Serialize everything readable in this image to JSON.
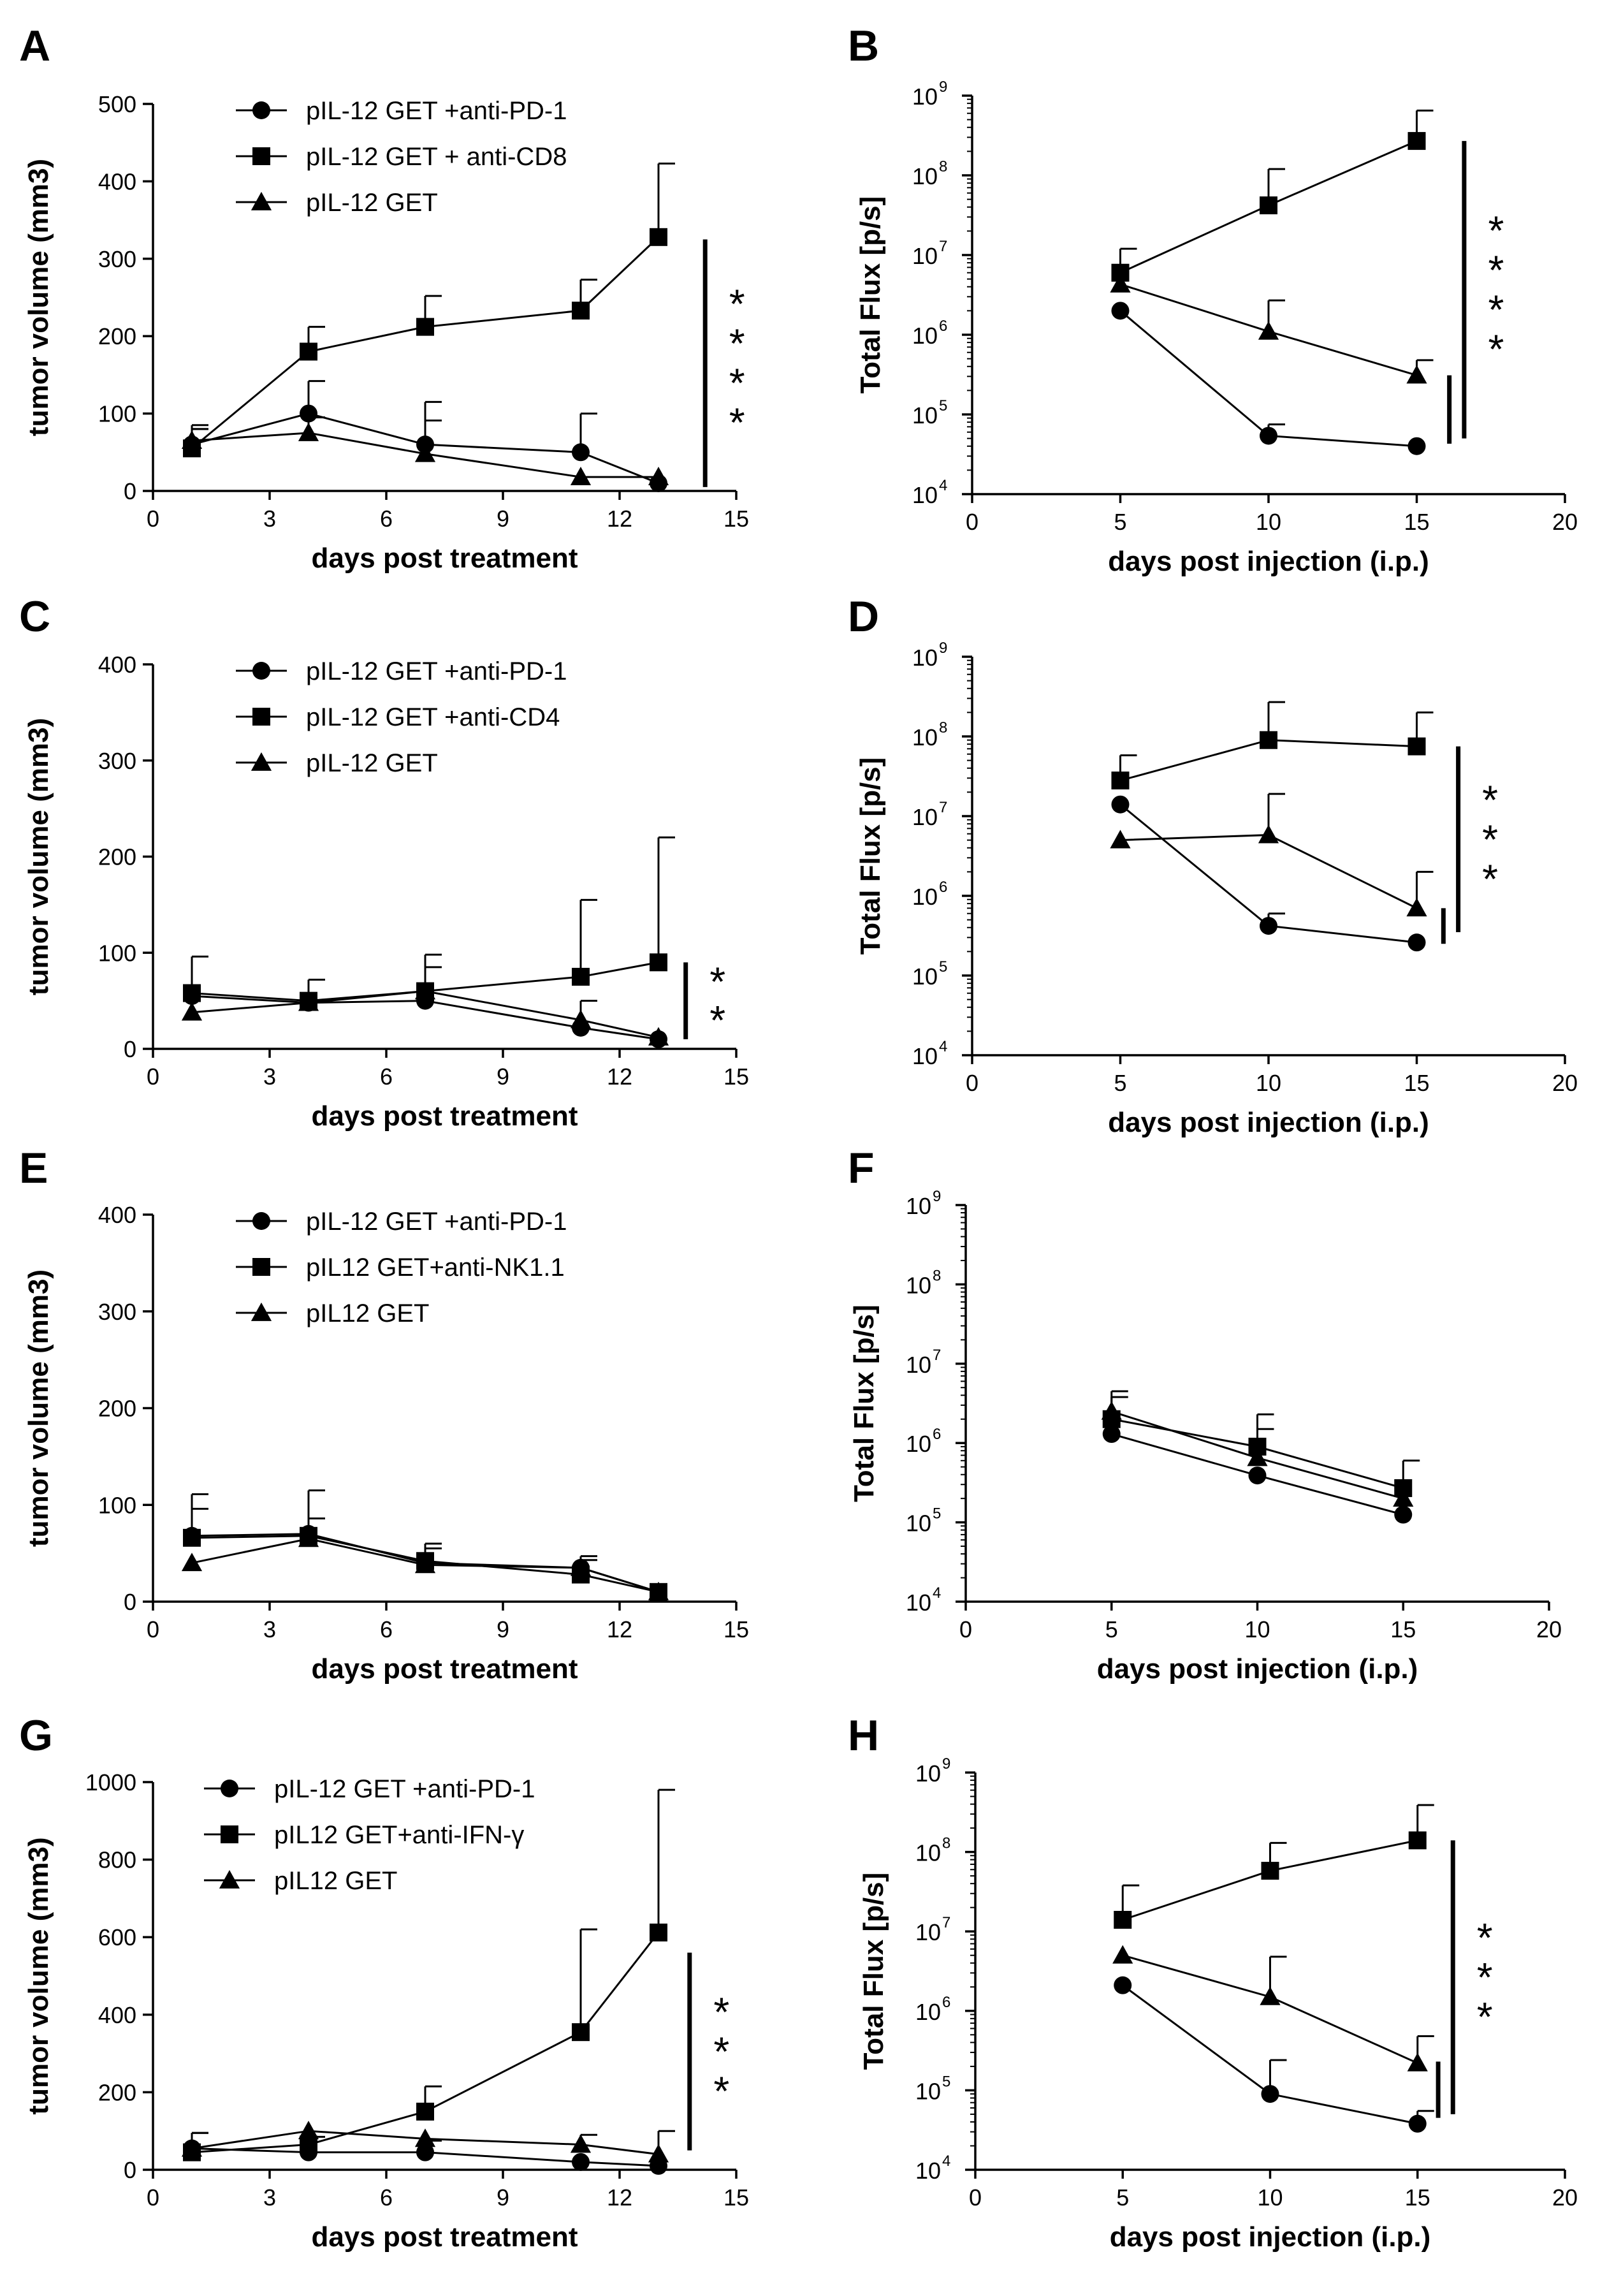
{
  "chart_data": [
    {
      "panel": "A",
      "type": "line",
      "scale": "linear",
      "xlabel": "days post treatment",
      "ylabel": "tumor volume (mm3)",
      "xlim": [
        0,
        15
      ],
      "ylim": [
        0,
        500
      ],
      "xticks": [
        "0",
        "3",
        "6",
        "9",
        "12",
        "15"
      ],
      "yticks": [
        "0",
        "100",
        "200",
        "300",
        "400",
        "500"
      ],
      "legend": "top-center",
      "series": [
        {
          "name": "pIL-12 GET +anti-PD-1",
          "marker": "circle",
          "x": [
            1,
            4,
            7,
            11,
            13
          ],
          "y": [
            60,
            100,
            60,
            50,
            10
          ],
          "err": [
            20,
            42,
            55,
            50,
            0
          ]
        },
        {
          "name": "pIL-12 GET + anti-CD8",
          "marker": "square",
          "x": [
            1,
            4,
            7,
            11,
            13
          ],
          "y": [
            55,
            180,
            212,
            233,
            328
          ],
          "err": [
            30,
            32,
            40,
            40,
            95
          ]
        },
        {
          "name": "pIL-12 GET",
          "marker": "triangle",
          "x": [
            1,
            4,
            7,
            11,
            13
          ],
          "y": [
            65,
            75,
            48,
            18,
            18
          ],
          "err": [
            15,
            20,
            43,
            0,
            0
          ]
        }
      ],
      "significance": [
        {
          "from": 5,
          "to": 325,
          "at": 14.2,
          "label": "****"
        }
      ]
    },
    {
      "panel": "B",
      "type": "line",
      "scale": "log",
      "xlabel": "days post injection (i.p.)",
      "ylabel": "Total Flux [p/s]",
      "xlim": [
        0,
        20
      ],
      "ylim_exp": [
        4,
        9
      ],
      "xticks": [
        "0",
        "5",
        "10",
        "15",
        "20"
      ],
      "yticks": [
        "10",
        "10",
        "10",
        "10",
        "10",
        "10"
      ],
      "ytick_exponents": [
        "4",
        "5",
        "6",
        "7",
        "8",
        "9"
      ],
      "series": [
        {
          "name": "circle",
          "marker": "circle",
          "x": [
            5,
            10,
            15
          ],
          "y": [
            2000000,
            54000,
            40000
          ],
          "err_top": [
            0,
            75000,
            0
          ]
        },
        {
          "name": "square",
          "marker": "square",
          "x": [
            5,
            10,
            15
          ],
          "y": [
            6000000,
            42000000,
            270000000
          ],
          "err_top": [
            12000000,
            120000000,
            650000000
          ]
        },
        {
          "name": "triangle",
          "marker": "triangle",
          "x": [
            5,
            10,
            15
          ],
          "y": [
            4300000,
            1100000,
            310000
          ],
          "err_top": [
            0,
            2700000,
            480000
          ]
        }
      ],
      "significance": [
        {
          "from": 43000,
          "to": 310000,
          "at": 16.1,
          "label": ""
        },
        {
          "from": 50000,
          "to": 270000000,
          "at": 16.6,
          "label": "****"
        }
      ]
    },
    {
      "panel": "C",
      "type": "line",
      "scale": "linear",
      "xlabel": "days post treatment",
      "ylabel": "tumor volume (mm3)",
      "xlim": [
        0,
        15
      ],
      "ylim": [
        0,
        400
      ],
      "xticks": [
        "0",
        "3",
        "6",
        "9",
        "12",
        "15"
      ],
      "yticks": [
        "0",
        "100",
        "200",
        "300",
        "400"
      ],
      "legend": "top-center",
      "series": [
        {
          "name": "pIL-12 GET +anti-PD-1",
          "marker": "circle",
          "x": [
            1,
            4,
            7,
            11,
            13
          ],
          "y": [
            55,
            48,
            50,
            22,
            10
          ],
          "err": [
            0,
            24,
            0,
            28,
            0
          ]
        },
        {
          "name": "pIL-12 GET +anti-CD4",
          "marker": "square",
          "x": [
            1,
            4,
            7,
            11,
            13
          ],
          "y": [
            58,
            50,
            60,
            75,
            90
          ],
          "err": [
            38,
            0,
            38,
            80,
            130
          ]
        },
        {
          "name": "pIL-12 GET",
          "marker": "triangle",
          "x": [
            1,
            4,
            7,
            11,
            13
          ],
          "y": [
            38,
            48,
            60,
            30,
            12
          ],
          "err": [
            0,
            0,
            25,
            0,
            0
          ]
        }
      ],
      "significance": [
        {
          "from": 10,
          "to": 90,
          "at": 13.7,
          "label": "**"
        }
      ]
    },
    {
      "panel": "D",
      "type": "line",
      "scale": "log",
      "xlabel": "days post injection (i.p.)",
      "ylabel": "Total Flux [p/s]",
      "xlim": [
        0,
        20
      ],
      "ylim_exp": [
        4,
        9
      ],
      "xticks": [
        "0",
        "5",
        "10",
        "15",
        "20"
      ],
      "yticks": [
        "10",
        "10",
        "10",
        "10",
        "10",
        "10"
      ],
      "ytick_exponents": [
        "4",
        "5",
        "6",
        "7",
        "8",
        "9"
      ],
      "series": [
        {
          "name": "circle",
          "marker": "circle",
          "x": [
            5,
            10,
            15
          ],
          "y": [
            14000000,
            420000,
            260000
          ],
          "err_top": [
            0,
            600000,
            0
          ]
        },
        {
          "name": "square",
          "marker": "square",
          "x": [
            5,
            10,
            15
          ],
          "y": [
            28000000,
            90000000,
            75000000
          ],
          "err_top": [
            58000000,
            270000000,
            200000000
          ]
        },
        {
          "name": "triangle",
          "marker": "triangle",
          "x": [
            5,
            10,
            15
          ],
          "y": [
            5000000,
            5800000,
            700000
          ],
          "err_top": [
            0,
            19000000,
            2000000
          ]
        }
      ],
      "significance": [
        {
          "from": 250000,
          "to": 700000,
          "at": 15.9,
          "label": ""
        },
        {
          "from": 350000,
          "to": 75000000,
          "at": 16.4,
          "label": "***"
        }
      ]
    },
    {
      "panel": "E",
      "type": "line",
      "scale": "linear",
      "xlabel": "days post treatment",
      "ylabel": "tumor volume (mm3)",
      "xlim": [
        0,
        15
      ],
      "ylim": [
        0,
        400
      ],
      "xticks": [
        "0",
        "3",
        "6",
        "9",
        "12",
        "15"
      ],
      "yticks": [
        "0",
        "100",
        "200",
        "300",
        "400"
      ],
      "legend": "top-center",
      "series": [
        {
          "name": "pIL-12 GET +anti-PD-1",
          "marker": "circle",
          "x": [
            1,
            4,
            7,
            11,
            13
          ],
          "y": [
            68,
            70,
            40,
            35,
            10
          ],
          "err": [
            43,
            45,
            15,
            12,
            0
          ]
        },
        {
          "name": "pIL12 GET+anti-NK1.1",
          "marker": "square",
          "x": [
            1,
            4,
            7,
            11,
            13
          ],
          "y": [
            66,
            68,
            42,
            28,
            10
          ],
          "err": [
            30,
            18,
            18,
            15,
            0
          ]
        },
        {
          "name": "pIL12 GET",
          "marker": "triangle",
          "x": [
            1,
            4,
            7,
            11,
            13
          ],
          "y": [
            40,
            65,
            38,
            35,
            10
          ],
          "err": [
            0,
            0,
            0,
            0,
            0
          ]
        }
      ],
      "significance": []
    },
    {
      "panel": "F",
      "type": "line",
      "scale": "log",
      "xlabel": "days post injection (i.p.)",
      "ylabel": "Total Flux [p/s]",
      "xlim": [
        0,
        20
      ],
      "ylim_exp": [
        4,
        9
      ],
      "xticks": [
        "0",
        "5",
        "10",
        "15",
        "20"
      ],
      "yticks": [
        "10",
        "10",
        "10",
        "10",
        "10",
        "10"
      ],
      "ytick_exponents": [
        "4",
        "5",
        "6",
        "7",
        "8",
        "9"
      ],
      "series": [
        {
          "name": "circle",
          "marker": "circle",
          "x": [
            5,
            10,
            15
          ],
          "y": [
            1300000,
            390000,
            125000
          ],
          "err_top": [
            0,
            0,
            0
          ]
        },
        {
          "name": "square",
          "marker": "square",
          "x": [
            5,
            10,
            15
          ],
          "y": [
            2000000,
            900000,
            270000
          ],
          "err_top": [
            4500000,
            2300000,
            600000
          ]
        },
        {
          "name": "triangle",
          "marker": "triangle",
          "x": [
            5,
            10,
            15
          ],
          "y": [
            2500000,
            650000,
            200000
          ],
          "err_top": [
            3800000,
            1500000,
            0
          ]
        }
      ],
      "significance": []
    },
    {
      "panel": "G",
      "type": "line",
      "scale": "linear",
      "xlabel": "days post treatment",
      "ylabel": "tumor volume (mm3)",
      "xlim": [
        0,
        15
      ],
      "ylim": [
        0,
        1000
      ],
      "xticks": [
        "0",
        "3",
        "6",
        "9",
        "12",
        "15"
      ],
      "yticks": [
        "0",
        "200",
        "400",
        "600",
        "800",
        "1000"
      ],
      "legend": "top-left",
      "series": [
        {
          "name": "pIL-12 GET +anti-PD-1",
          "marker": "circle",
          "x": [
            1,
            4,
            7,
            11,
            13
          ],
          "y": [
            55,
            45,
            45,
            20,
            10
          ],
          "err": [
            0,
            0,
            30,
            0,
            0
          ]
        },
        {
          "name": "pIL12 GET+anti-IFN-γ",
          "marker": "square",
          "x": [
            1,
            4,
            7,
            11,
            13
          ],
          "y": [
            45,
            65,
            150,
            355,
            612
          ],
          "err": [
            50,
            20,
            65,
            265,
            368
          ]
        },
        {
          "name": "pIL12 GET",
          "marker": "triangle",
          "x": [
            1,
            4,
            7,
            11,
            13
          ],
          "y": [
            55,
            100,
            80,
            65,
            40
          ],
          "err": [
            40,
            0,
            0,
            25,
            60
          ]
        }
      ],
      "significance": [
        {
          "from": 50,
          "to": 560,
          "at": 13.8,
          "label": "***"
        }
      ]
    },
    {
      "panel": "H",
      "type": "line",
      "scale": "log",
      "xlabel": "days post injection (i.p.)",
      "ylabel": "Total Flux [p/s]",
      "xlim": [
        0,
        20
      ],
      "ylim_exp": [
        4,
        9
      ],
      "xticks": [
        "0",
        "5",
        "10",
        "15",
        "20"
      ],
      "yticks": [
        "10",
        "10",
        "10",
        "10",
        "10",
        "10"
      ],
      "ytick_exponents": [
        "4",
        "5",
        "6",
        "7",
        "8",
        "9"
      ],
      "series": [
        {
          "name": "circle",
          "marker": "circle",
          "x": [
            5,
            10,
            15
          ],
          "y": [
            2100000,
            90000,
            38000
          ],
          "err_top": [
            0,
            240000,
            55000
          ]
        },
        {
          "name": "square",
          "marker": "square",
          "x": [
            5,
            10,
            15
          ],
          "y": [
            14000000,
            58000000,
            140000000
          ],
          "err_top": [
            38000000,
            130000000,
            390000000
          ]
        },
        {
          "name": "triangle",
          "marker": "triangle",
          "x": [
            5,
            10,
            15
          ],
          "y": [
            5000000,
            1500000,
            220000
          ],
          "err_top": [
            0,
            4800000,
            480000
          ]
        }
      ],
      "significance": [
        {
          "from": 45000,
          "to": 230000,
          "at": 15.7,
          "label": ""
        },
        {
          "from": 50000,
          "to": 140000000,
          "at": 16.2,
          "label": "***"
        }
      ]
    }
  ]
}
